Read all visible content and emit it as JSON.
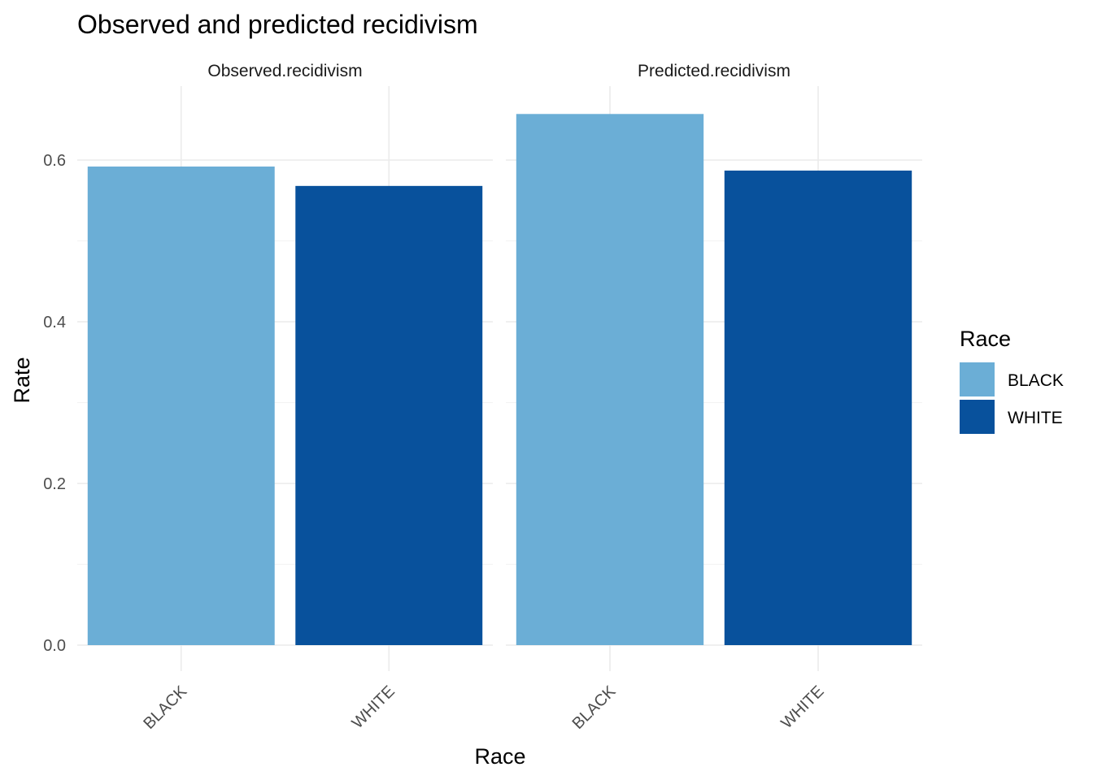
{
  "chart_data": {
    "type": "bar",
    "title": "Observed and predicted recidivism",
    "xlabel": "Race",
    "ylabel": "Rate",
    "ylim": [
      0,
      0.69
    ],
    "yticks": [
      0.0,
      0.2,
      0.4,
      0.6
    ],
    "ytick_labels": [
      "0.0",
      "0.2",
      "0.4",
      "0.6"
    ],
    "grid": true,
    "legend": {
      "title": "Race",
      "placement": "right",
      "entries": [
        {
          "label": "BLACK",
          "color": "#6baed6"
        },
        {
          "label": "WHITE",
          "color": "#08519c"
        }
      ]
    },
    "categories": [
      "BLACK",
      "WHITE"
    ],
    "facets": [
      {
        "name": "Observed.recidivism",
        "values": [
          0.592,
          0.568
        ]
      },
      {
        "name": "Predicted.recidivism",
        "values": [
          0.657,
          0.587
        ]
      }
    ]
  }
}
